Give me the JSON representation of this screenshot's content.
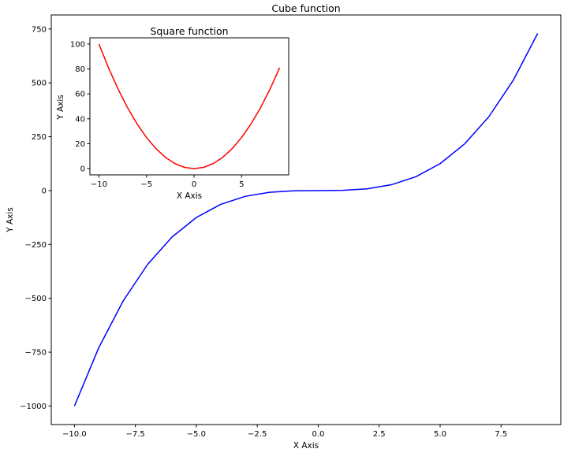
{
  "chart_data": [
    {
      "type": "line",
      "title": "Cube function",
      "xlabel": "X Axis",
      "ylabel": "Y Axis",
      "xlim": [
        -10.95,
        9.95
      ],
      "ylim": [
        -1086,
        815
      ],
      "xticks": [
        -10.0,
        -7.5,
        -5.0,
        -2.5,
        0.0,
        2.5,
        5.0,
        7.5
      ],
      "xtick_labels": [
        "−10.0",
        "−7.5",
        "−5.0",
        "−2.5",
        "0.0",
        "2.5",
        "5.0",
        "7.5"
      ],
      "yticks": [
        -1000,
        -750,
        -500,
        -250,
        0,
        250,
        500,
        750
      ],
      "ytick_labels": [
        "−1000",
        "−750",
        "−500",
        "−250",
        "0",
        "250",
        "500",
        "750"
      ],
      "grid": false,
      "series": [
        {
          "color": "#0000ff",
          "x": [
            -10,
            -9,
            -8,
            -7,
            -6,
            -5,
            -4,
            -3,
            -2,
            -1,
            0,
            1,
            2,
            3,
            4,
            5,
            6,
            7,
            8,
            9
          ],
          "values": [
            -1000,
            -729,
            -512,
            -343,
            -216,
            -125,
            -64,
            -27,
            -8,
            -1,
            0,
            1,
            8,
            27,
            64,
            125,
            216,
            343,
            512,
            729
          ]
        }
      ]
    },
    {
      "type": "line",
      "title": "Square function",
      "xlabel": "X Axis",
      "ylabel": "Y Axis",
      "xlim": [
        -10.95,
        9.95
      ],
      "ylim": [
        -5,
        105
      ],
      "xticks": [
        -10,
        -5,
        0,
        5
      ],
      "xtick_labels": [
        "−10",
        "−5",
        "0",
        "5"
      ],
      "yticks": [
        0,
        20,
        40,
        60,
        80,
        100
      ],
      "ytick_labels": [
        "0",
        "20",
        "40",
        "60",
        "80",
        "100"
      ],
      "grid": false,
      "series": [
        {
          "color": "#ff0000",
          "x": [
            -10,
            -9,
            -8,
            -7,
            -6,
            -5,
            -4,
            -3,
            -2,
            -1,
            0,
            1,
            2,
            3,
            4,
            5,
            6,
            7,
            8,
            9
          ],
          "values": [
            100,
            81,
            64,
            49,
            36,
            25,
            16,
            9,
            4,
            1,
            0,
            1,
            4,
            9,
            16,
            25,
            36,
            49,
            64,
            81
          ]
        }
      ]
    }
  ]
}
